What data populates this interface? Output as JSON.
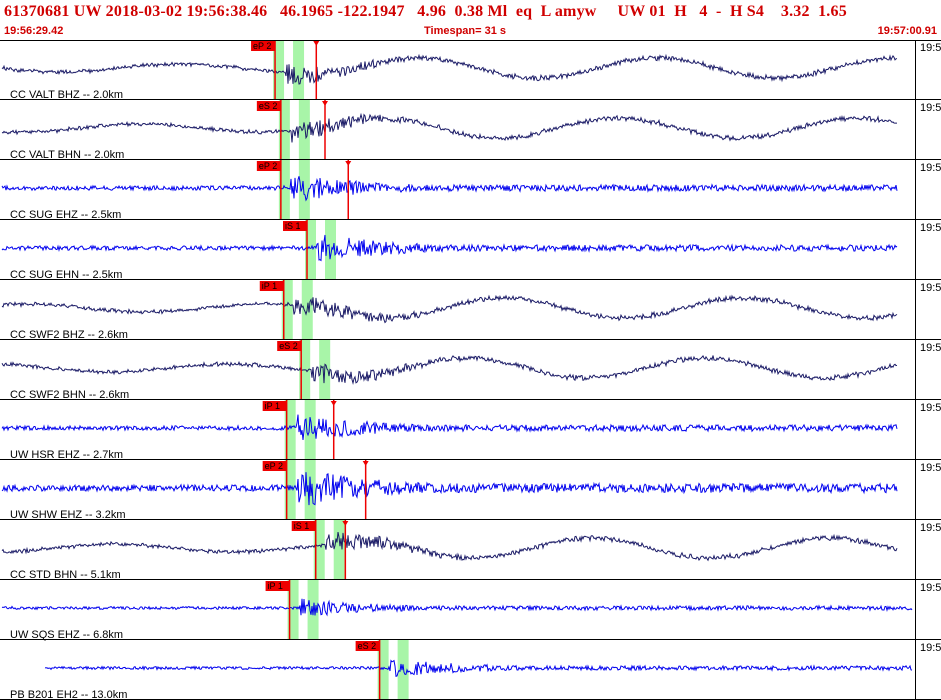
{
  "header": {
    "summary_line": "61370681 UW 2018-03-02 19:56:38.46   46.1965 -122.1947   4.96  0.38 Ml  eq  L amyw     UW 01  H   4  -  H S4    3.32  1.65",
    "start_time": "19:56:29.42",
    "timespan": "Timespan=  31 s",
    "end_time": "19:57:00.91"
  },
  "colors": {
    "trace_dark": "#1a1a66",
    "trace_blue": "#0000ee",
    "pick_red": "#ee0000",
    "window_green": "#a8f5a8",
    "header_red": "#d00000"
  },
  "channels": [
    {
      "label": "CC VALT BHZ -- 2.0km",
      "right_label": "19:5",
      "color": "dark",
      "picks": [
        {
          "label": "eP 2",
          "t": 9.4
        },
        {
          "label": "",
          "t": 10.2
        }
      ]
    },
    {
      "label": "CC VALT BHN -- 2.0km",
      "right_label": "19:5",
      "color": "dark",
      "picks": [
        {
          "label": "eS 2",
          "t": 9.6
        },
        {
          "label": "",
          "t": 10.5
        }
      ]
    },
    {
      "label": "CC SUG EHZ -- 2.5km",
      "right_label": "19:5",
      "color": "blue",
      "picks": [
        {
          "label": "eP 2",
          "t": 9.6
        },
        {
          "label": "",
          "t": 11.3
        }
      ]
    },
    {
      "label": "CC SUG EHN -- 2.5km",
      "right_label": "19:5",
      "color": "blue",
      "picks": [
        {
          "label": "iS 1",
          "t": 10.5
        }
      ]
    },
    {
      "label": "CC SWF2 BHZ -- 2.6km",
      "right_label": "19:5",
      "color": "dark",
      "picks": [
        {
          "label": "iP 1",
          "t": 9.7
        }
      ]
    },
    {
      "label": "CC SWF2 BHN -- 2.6km",
      "right_label": "19:5",
      "color": "dark",
      "picks": [
        {
          "label": "eS 2",
          "t": 10.3
        }
      ]
    },
    {
      "label": "UW HSR EHZ -- 2.7km",
      "right_label": "19:5",
      "color": "blue",
      "picks": [
        {
          "label": "iP 1",
          "t": 9.8
        },
        {
          "label": "",
          "t": 10.8
        }
      ]
    },
    {
      "label": "UW SHW EHZ -- 3.2km",
      "right_label": "19:5",
      "color": "blue",
      "picks": [
        {
          "label": "eP 2",
          "t": 9.8
        },
        {
          "label": "",
          "t": 11.9
        }
      ]
    },
    {
      "label": "CC STD BHN -- 5.1km",
      "right_label": "19:5",
      "color": "dark",
      "picks": [
        {
          "label": "iS 1",
          "t": 10.8
        },
        {
          "label": "",
          "t": 11.2
        }
      ]
    },
    {
      "label": "UW SQS EHZ -- 6.8km",
      "right_label": "19:5",
      "color": "blue",
      "picks": [
        {
          "label": "iP 1",
          "t": 9.9
        }
      ]
    },
    {
      "label": "PB B201 EH2 -- 13.0km",
      "right_label": "19:5",
      "color": "blue",
      "picks": [
        {
          "label": "eS 2",
          "t": 13.0
        }
      ]
    }
  ]
}
